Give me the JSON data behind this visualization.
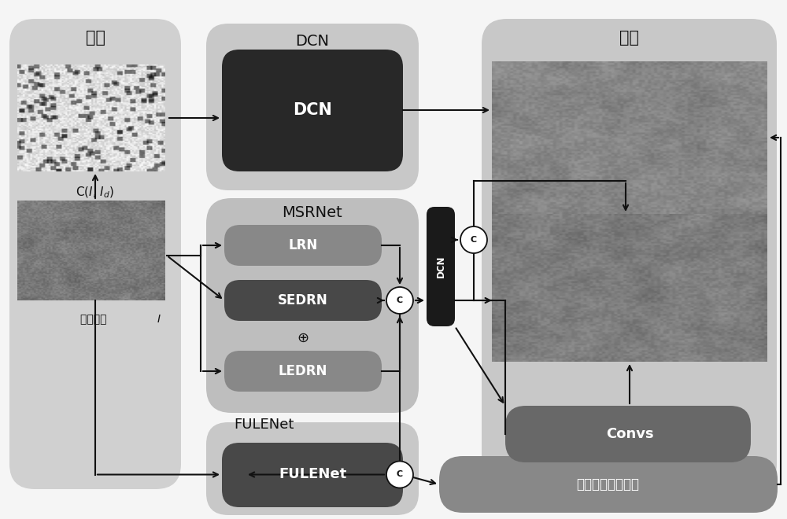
{
  "bg": "#f5f5f5",
  "input_panel_color": "#d0d0d0",
  "dcn_panel_color": "#c8c8c8",
  "msrnet_panel_color": "#bebebe",
  "fulenet_panel_color": "#c8c8c8",
  "output_panel_color": "#c8c8c8",
  "dcn_box_color": "#282828",
  "lrn_box_color": "#888888",
  "sedrn_box_color": "#484848",
  "ledrn_box_color": "#888888",
  "fulenet_box_color": "#484848",
  "convs_box_color": "#686868",
  "mix_box_color": "#888888",
  "dcn_vert_color": "#1a1a1a",
  "text_white": "#ffffff",
  "text_black": "#111111",
  "title_input": "输入",
  "title_output": "输出",
  "title_dcn": "DCN",
  "title_msrnet": "MSRNet",
  "title_fulenet": "FULENet",
  "lbl_dcn": "DCN",
  "lbl_lrn": "LRN",
  "lbl_sedrn": "SEDRN",
  "lbl_ledrn": "LEDRN",
  "lbl_fulenet": "FULENet",
  "lbl_convs": "Convs",
  "lbl_mix": "混合颜色矫正矩阵",
  "lbl_input_img": "输入图像"
}
